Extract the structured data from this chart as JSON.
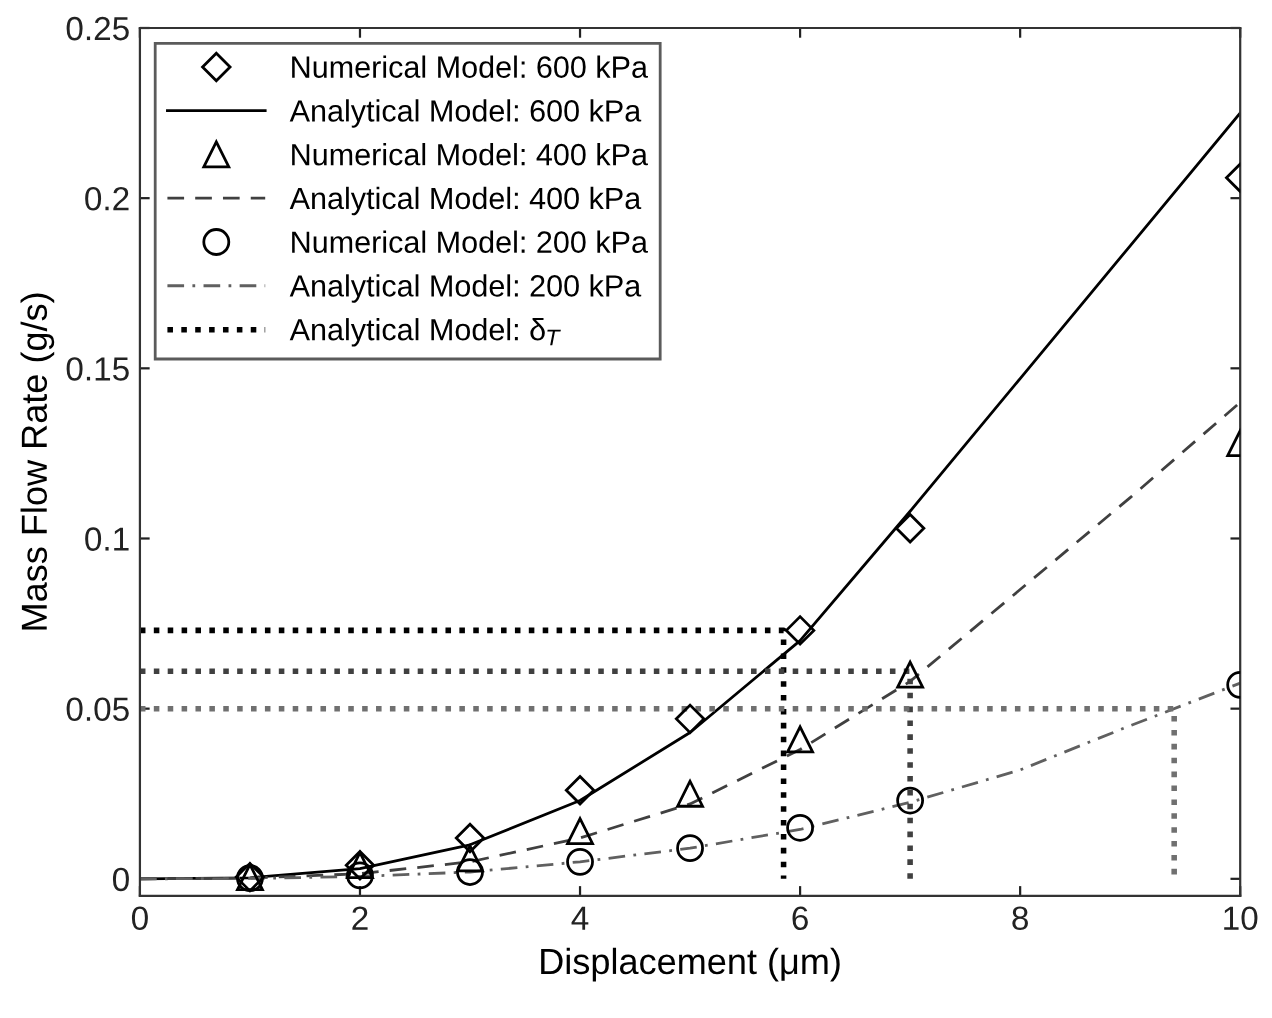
{
  "chart_data": {
    "type": "scatter",
    "xlabel": "Displacement (μm)",
    "ylabel": "Mass Flow Rate (g/s)",
    "xlim": [
      0,
      10
    ],
    "ylim": [
      -0.005,
      0.25
    ],
    "xticks": [
      0,
      2,
      4,
      6,
      8,
      10
    ],
    "yticks": [
      0,
      {
        "value": 0.05,
        "label": "0.05"
      },
      {
        "value": 0.1,
        "label": "0.1"
      },
      {
        "value": 0.15,
        "label": "0.15"
      },
      {
        "value": 0.2,
        "label": "0.2"
      },
      {
        "value": 0.25,
        "label": "0.25"
      }
    ],
    "grid": false,
    "legend": "top left",
    "series": [
      {
        "name": "Numerical Model: 600 kPa",
        "marker": "diamond",
        "color": "#000000",
        "x": [
          1,
          2,
          3,
          4,
          5,
          6,
          7,
          10
        ],
        "values": [
          0.0005,
          0.004,
          0.012,
          0.026,
          0.047,
          0.073,
          0.103,
          0.206
        ]
      },
      {
        "name": "Analytical Model: 600 kPa",
        "type": "line",
        "line_style": "solid",
        "color": "#000000",
        "x": [
          0,
          1,
          2,
          3,
          4,
          5,
          6,
          7,
          8,
          9,
          10
        ],
        "values": [
          0,
          0.0003,
          0.003,
          0.01,
          0.023,
          0.043,
          0.07,
          0.108,
          0.147,
          0.186,
          0.225
        ]
      },
      {
        "name": "Numerical Model: 400 kPa",
        "marker": "triangle",
        "color": "#000000",
        "x": [
          1,
          2,
          3,
          4,
          5,
          6,
          7,
          10
        ],
        "values": [
          0.0005,
          0.004,
          0.006,
          0.014,
          0.025,
          0.041,
          0.06,
          0.128
        ]
      },
      {
        "name": "Analytical Model: 400 kPa",
        "type": "line",
        "line_style": "dashed",
        "color": "#404040",
        "x": [
          0,
          1,
          2,
          3,
          4,
          5,
          6,
          7,
          8,
          9,
          10
        ],
        "values": [
          0,
          0.0002,
          0.0015,
          0.005,
          0.012,
          0.022,
          0.038,
          0.058,
          0.085,
          0.112,
          0.14
        ]
      },
      {
        "name": "Numerical Model: 200 kPa",
        "marker": "circle",
        "color": "#000000",
        "x": [
          1,
          2,
          3,
          4,
          5,
          6,
          7,
          10
        ],
        "values": [
          0.0002,
          0.001,
          0.002,
          0.005,
          0.009,
          0.015,
          0.023,
          0.057
        ]
      },
      {
        "name": "Analytical Model: 200 kPa",
        "type": "line",
        "line_style": "dashdot",
        "color": "#606060",
        "x": [
          0,
          1,
          2,
          3,
          4,
          5,
          6,
          7,
          8,
          9,
          10
        ],
        "values": [
          0,
          0.0001,
          0.0007,
          0.002,
          0.005,
          0.009,
          0.0145,
          0.0225,
          0.032,
          0.045,
          0.0575
        ]
      },
      {
        "name": "Analytical Model: δ$_{T}$",
        "type": "line",
        "line_style": "dotted",
        "color": "#000000",
        "x": [
          0,
          5.85,
          5.85
        ],
        "values": [
          0.073,
          0.073,
          0
        ]
      },
      {
        "type": "line",
        "line_style": "dotted",
        "color": "#404040",
        "x": [
          0,
          7,
          7
        ],
        "values": [
          0.061,
          0.061,
          0
        ]
      },
      {
        "type": "line",
        "line_style": "dotted",
        "color": "#707070",
        "x": [
          0,
          9.4,
          9.4
        ],
        "values": [
          0.05,
          0.05,
          0
        ]
      }
    ]
  }
}
